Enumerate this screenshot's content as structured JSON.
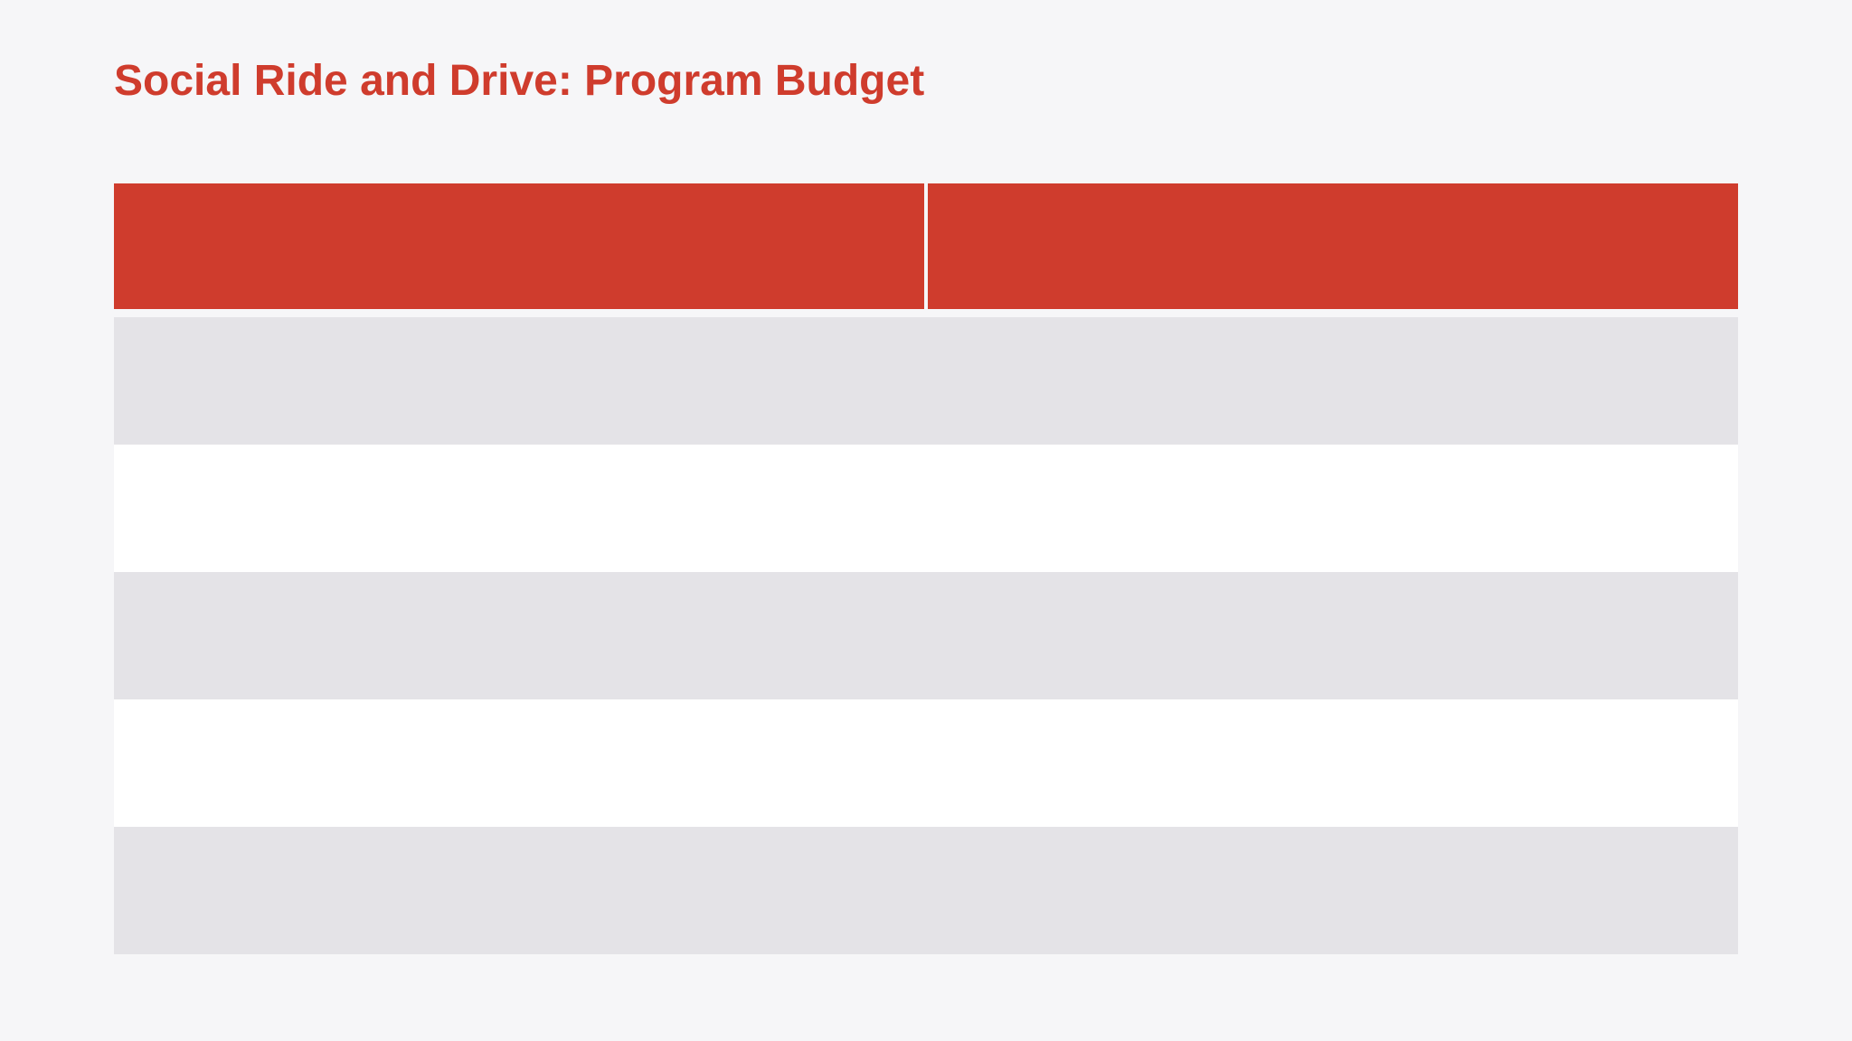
{
  "page": {
    "background_color": "#f6f6f8"
  },
  "title": {
    "text": "Social Ride and Drive: Program Budget",
    "color": "#cf3c2d"
  },
  "table": {
    "header": {
      "background_color": "#cf3c2d",
      "columns": [
        {
          "label": ""
        },
        {
          "label": ""
        }
      ]
    },
    "row_colors": {
      "odd": "#e4e3e7",
      "even": "#ffffff"
    },
    "rows": [
      [
        "",
        ""
      ],
      [
        "",
        ""
      ],
      [
        "",
        ""
      ],
      [
        "",
        ""
      ],
      [
        "",
        ""
      ]
    ]
  }
}
